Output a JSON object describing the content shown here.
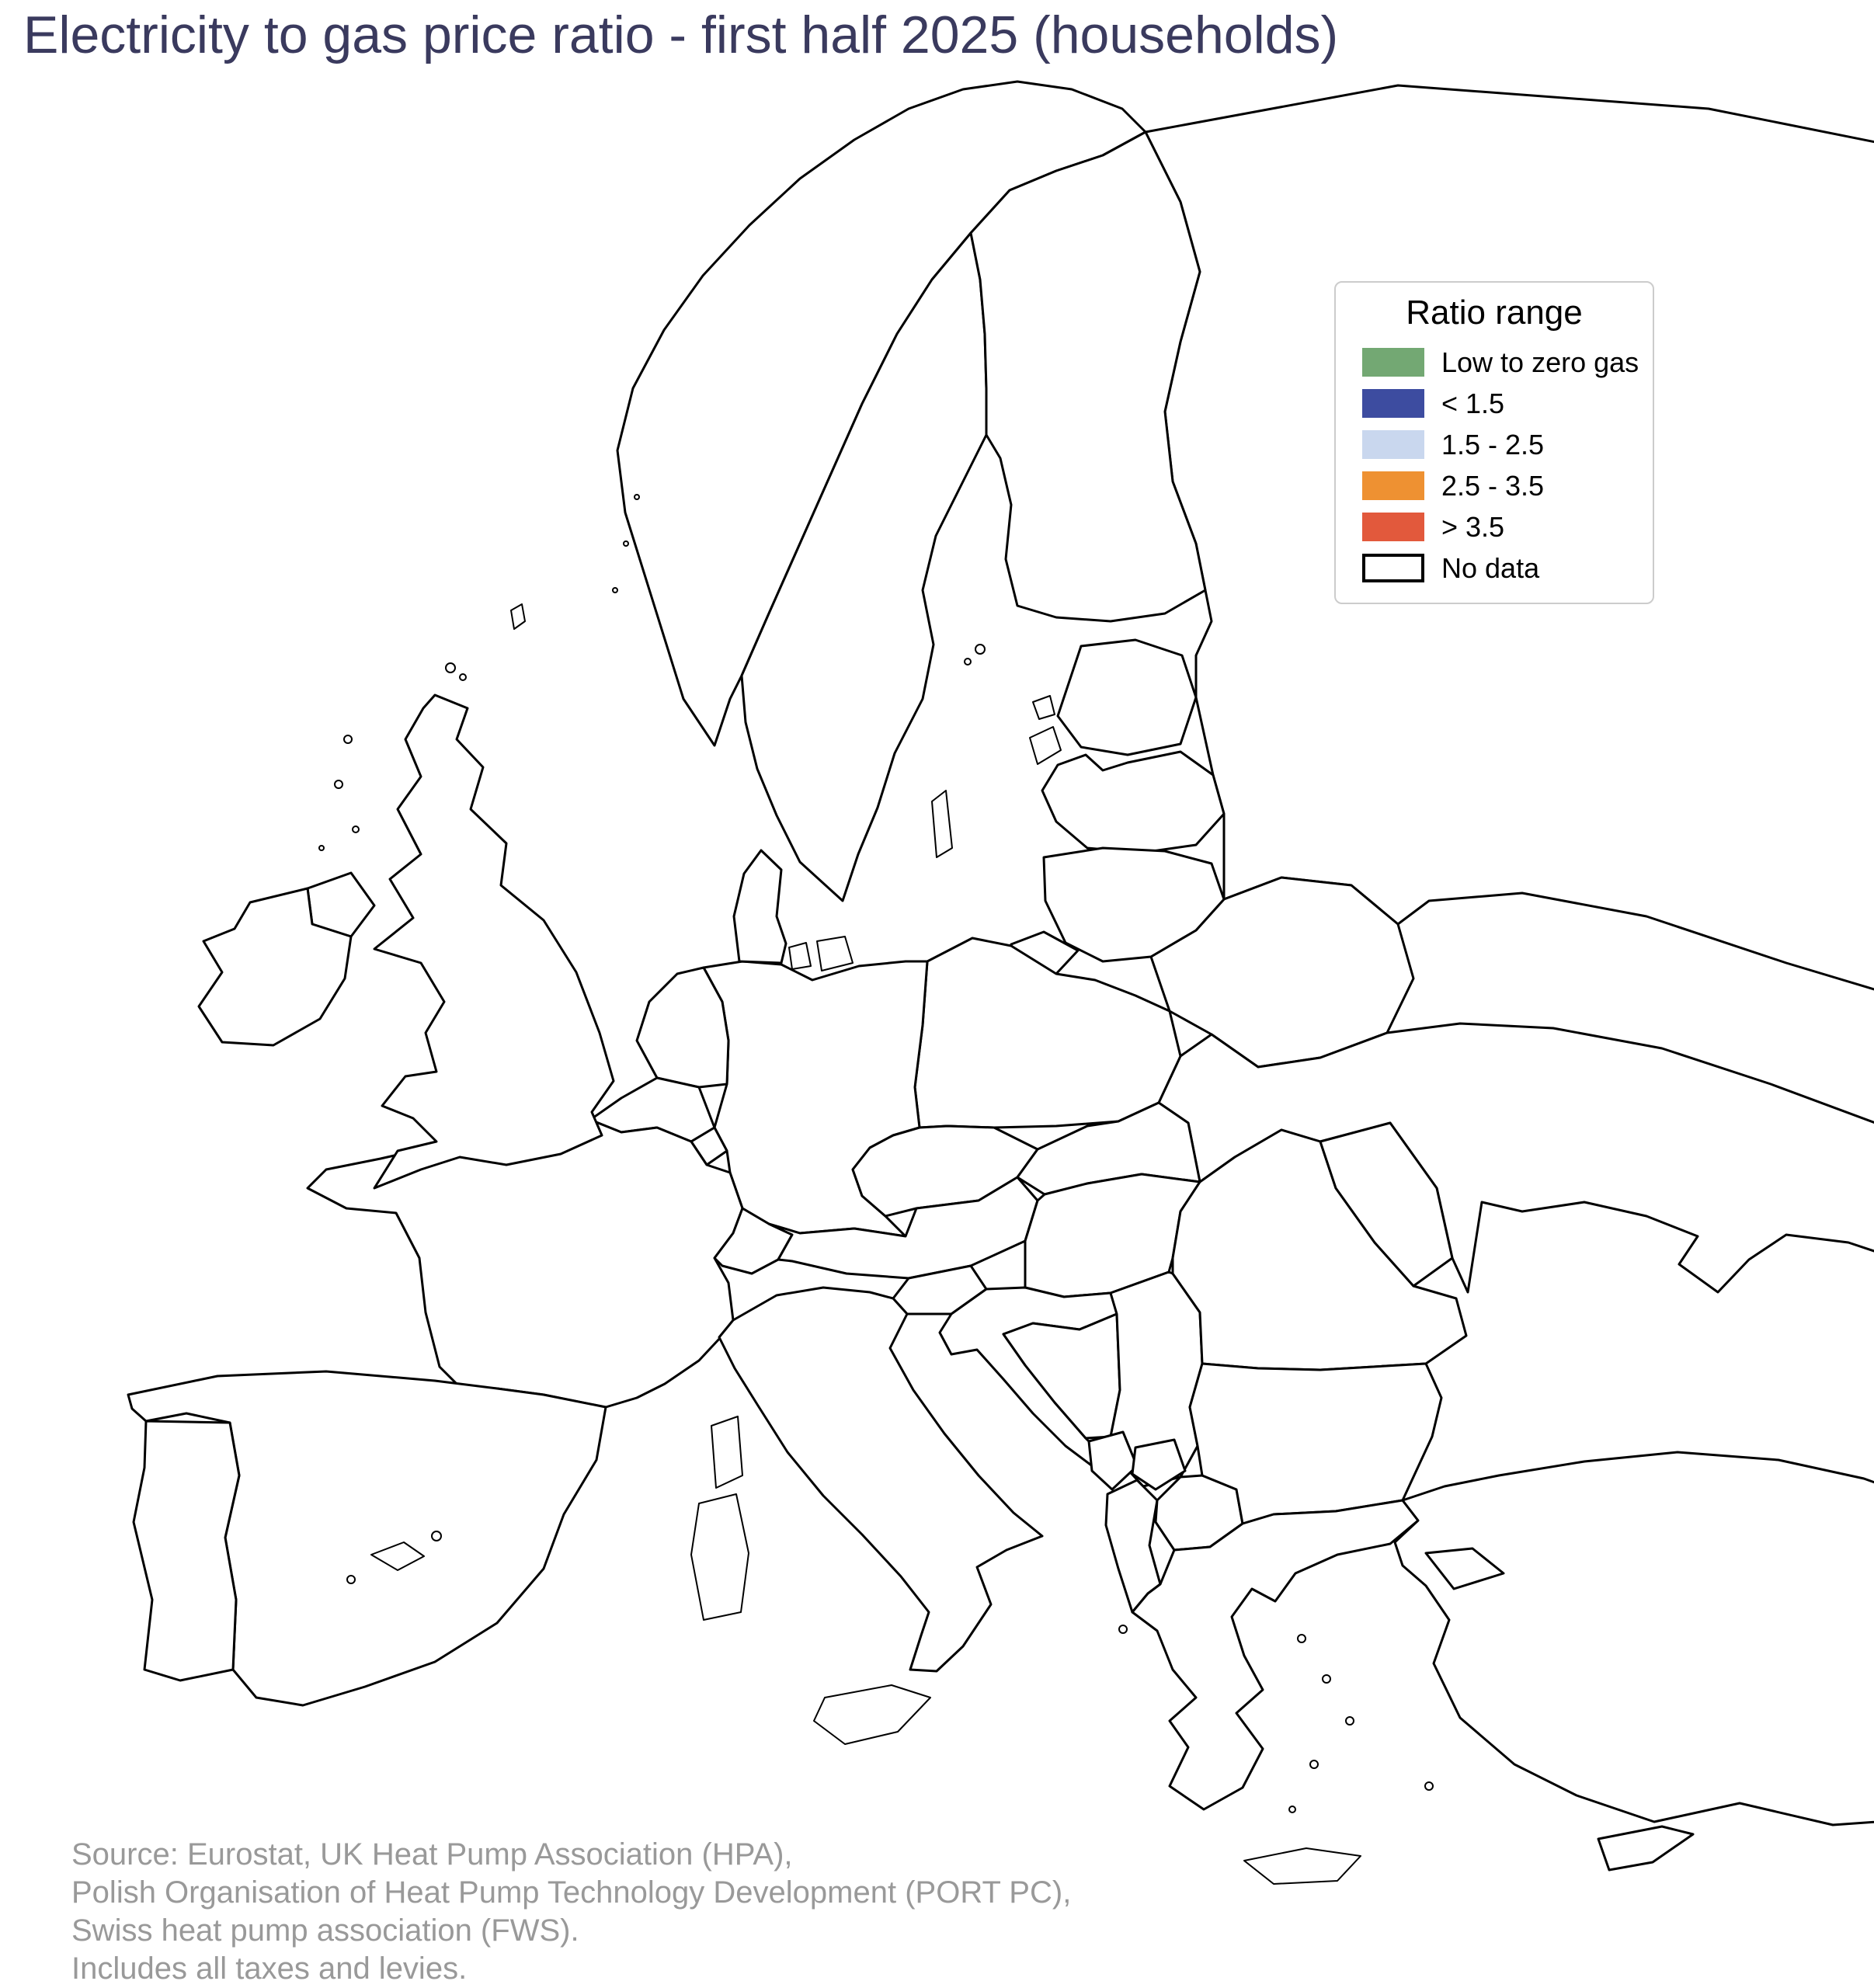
{
  "title": "Electricity to gas price ratio - first half 2025 (households)",
  "legend": {
    "title": "Ratio range"
  },
  "source": {
    "lines": [
      "Source: Eurostat, UK Heat Pump Association (HPA),",
      "Polish Organisation of Heat Pump Technology Development (PORT PC),",
      "Swiss heat pump association (FWS).",
      "Includes all taxes and levies."
    ]
  },
  "colors": {
    "outline": "#000000",
    "title_text": "#3A3A5E",
    "source_text": "#999999",
    "legend_border": "#CCCCCC",
    "background": "#FFFFFF"
  },
  "chart_data": {
    "type": "choropleth_map",
    "title": "Electricity to gas price ratio - first half 2025 (households)",
    "region_scope": "Europe",
    "legend_title": "Ratio range",
    "legend_position": "upper right",
    "categories": [
      {
        "key": "low_zero_gas",
        "label": "Low to zero gas",
        "color": "#73A873"
      },
      {
        "key": "lt15",
        "label": "< 1.5",
        "color": "#3D4CA0"
      },
      {
        "key": "b15_25",
        "label": "1.5 - 2.5",
        "color": "#C9D7EE"
      },
      {
        "key": "b25_35",
        "label": "2.5 - 3.5",
        "color": "#EE9132"
      },
      {
        "key": "gt35",
        "label": "> 3.5",
        "color": "#E2593C"
      },
      {
        "key": "no_data",
        "label": "No data",
        "color": "#FFFFFF"
      }
    ],
    "regions": [
      {
        "id": "norway",
        "name": "Norway",
        "category": "low_zero_gas"
      },
      {
        "id": "sweden",
        "name": "Sweden",
        "category": "low_zero_gas"
      },
      {
        "id": "finland",
        "name": "Finland",
        "category": "low_zero_gas"
      },
      {
        "id": "netherlands",
        "name": "Netherlands",
        "category": "lt15"
      },
      {
        "id": "north-macedonia",
        "name": "North Macedonia",
        "category": "lt15"
      },
      {
        "id": "france",
        "name": "France",
        "category": "b15_25"
      },
      {
        "id": "portugal",
        "name": "Portugal",
        "category": "b15_25"
      },
      {
        "id": "switzerland",
        "name": "Switzerland",
        "category": "b15_25"
      },
      {
        "id": "austria",
        "name": "Austria",
        "category": "b15_25"
      },
      {
        "id": "poland",
        "name": "Poland",
        "category": "b15_25"
      },
      {
        "id": "slovenia",
        "name": "Slovenia",
        "category": "b15_25"
      },
      {
        "id": "bosnia-herzegovina",
        "name": "Bosnia and Herzegovina",
        "category": "b15_25"
      },
      {
        "id": "bulgaria",
        "name": "Bulgaria",
        "category": "b15_25"
      },
      {
        "id": "moldova",
        "name": "Moldova",
        "category": "b15_25"
      },
      {
        "id": "ireland",
        "name": "Ireland",
        "category": "b25_35"
      },
      {
        "id": "spain",
        "name": "Spain",
        "category": "b25_35"
      },
      {
        "id": "luxembourg",
        "name": "Luxembourg",
        "category": "b25_35"
      },
      {
        "id": "germany",
        "name": "Germany",
        "category": "b25_35"
      },
      {
        "id": "denmark",
        "name": "Denmark",
        "category": "b25_35"
      },
      {
        "id": "czechia",
        "name": "Czechia",
        "category": "b25_35"
      },
      {
        "id": "slovakia",
        "name": "Slovakia",
        "category": "b25_35"
      },
      {
        "id": "hungary",
        "name": "Hungary",
        "category": "b25_35"
      },
      {
        "id": "croatia",
        "name": "Croatia",
        "category": "b25_35"
      },
      {
        "id": "italy",
        "name": "Italy",
        "category": "b25_35"
      },
      {
        "id": "estonia",
        "name": "Estonia",
        "category": "b25_35"
      },
      {
        "id": "latvia",
        "name": "Latvia",
        "category": "b25_35"
      },
      {
        "id": "lithuania",
        "name": "Lithuania",
        "category": "b25_35"
      },
      {
        "id": "romania",
        "name": "Romania",
        "category": "b25_35"
      },
      {
        "id": "greece",
        "name": "Greece",
        "category": "b25_35"
      },
      {
        "id": "turkey",
        "name": "Turkey",
        "category": "b25_35"
      },
      {
        "id": "united-kingdom",
        "name": "United Kingdom",
        "category": "gt35"
      },
      {
        "id": "belgium",
        "name": "Belgium",
        "category": "gt35"
      },
      {
        "id": "russia",
        "name": "Russia",
        "category": "no_data"
      },
      {
        "id": "belarus",
        "name": "Belarus",
        "category": "no_data"
      },
      {
        "id": "ukraine",
        "name": "Ukraine",
        "category": "no_data"
      },
      {
        "id": "serbia",
        "name": "Serbia",
        "category": "no_data"
      },
      {
        "id": "kosovo",
        "name": "Kosovo",
        "category": "no_data"
      },
      {
        "id": "montenegro",
        "name": "Montenegro",
        "category": "no_data"
      },
      {
        "id": "albania",
        "name": "Albania",
        "category": "no_data"
      },
      {
        "id": "cyprus",
        "name": "Cyprus",
        "category": "no_data"
      }
    ]
  }
}
